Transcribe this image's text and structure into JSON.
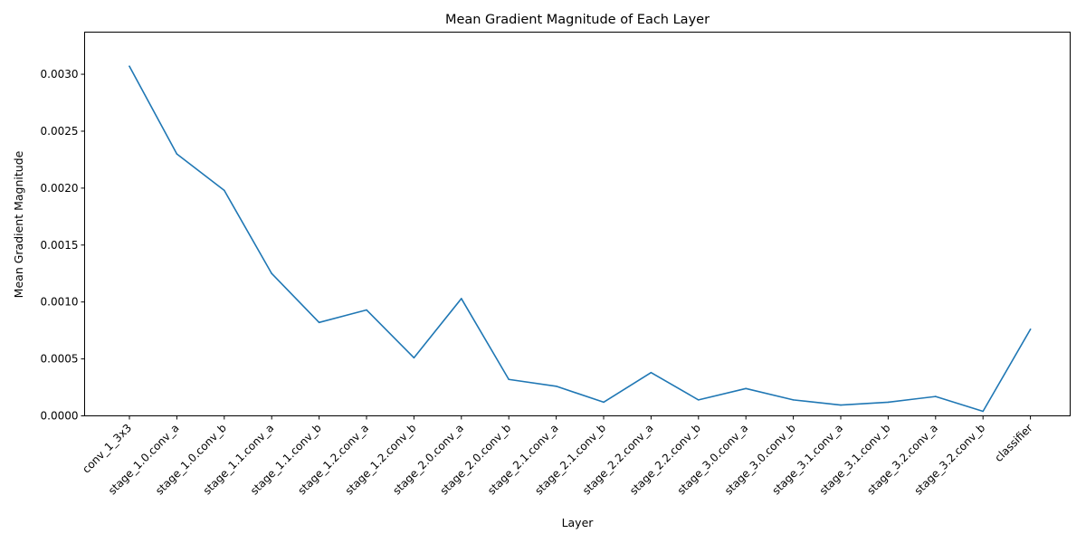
{
  "chart_data": {
    "type": "line",
    "title": "Mean Gradient Magnitude of Each Layer",
    "xlabel": "Layer",
    "ylabel": "Mean Gradient Magnitude",
    "categories": [
      "conv_1_3x3",
      "stage_1.0.conv_a",
      "stage_1.0.conv_b",
      "stage_1.1.conv_a",
      "stage_1.1.conv_b",
      "stage_1.2.conv_a",
      "stage_1.2.conv_b",
      "stage_2.0.conv_a",
      "stage_2.0.conv_b",
      "stage_2.1.conv_a",
      "stage_2.1.conv_b",
      "stage_2.2.conv_a",
      "stage_2.2.conv_b",
      "stage_3.0.conv_a",
      "stage_3.0.conv_b",
      "stage_3.1.conv_a",
      "stage_3.1.conv_b",
      "stage_3.2.conv_a",
      "stage_3.2.conv_b",
      "classifier"
    ],
    "series": [
      {
        "color": "#1f77b4",
        "values": [
          0.00307,
          0.0023,
          0.00198,
          0.00125,
          0.00082,
          0.00093,
          0.00051,
          0.00103,
          0.00032,
          0.00026,
          0.00012,
          0.00038,
          0.00014,
          0.00024,
          0.00014,
          9.5e-05,
          0.00012,
          0.00017,
          4e-05,
          0.00076
        ]
      }
    ],
    "yticks": [
      "0.0000",
      "0.0005",
      "0.0010",
      "0.0015",
      "0.0020",
      "0.0025",
      "0.0030"
    ],
    "ytick_values": [
      0,
      0.0005,
      0.001,
      0.0015,
      0.002,
      0.0025,
      0.003
    ],
    "ylim": [
      0,
      0.00337
    ],
    "grid": false,
    "legend": "none"
  }
}
